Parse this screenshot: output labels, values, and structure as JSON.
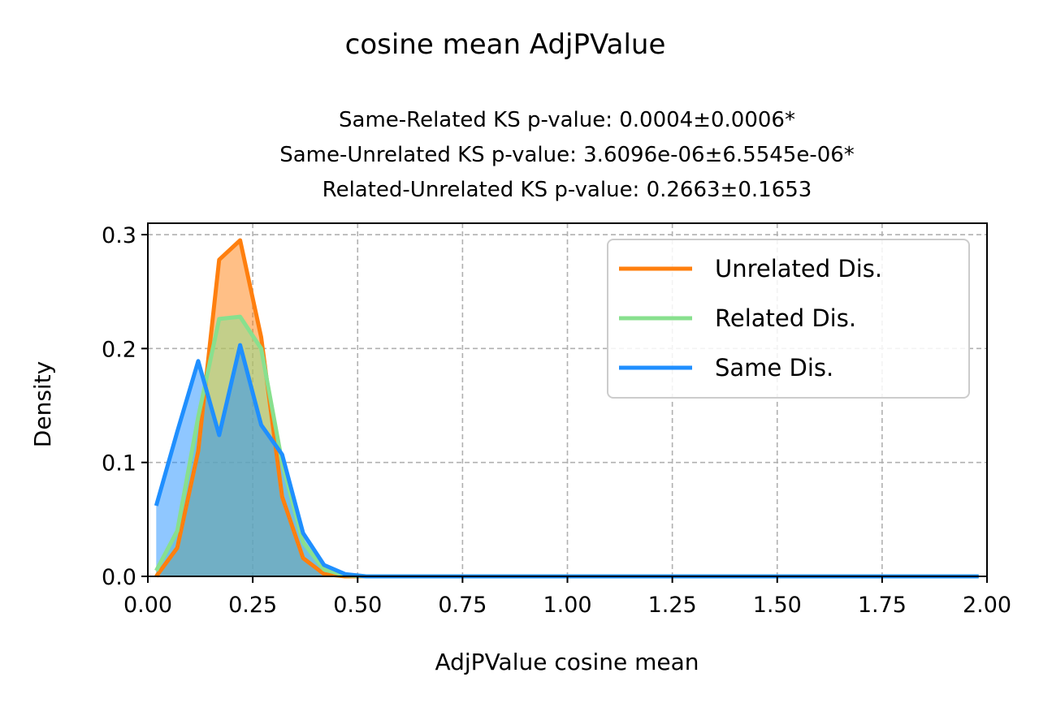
{
  "chart_data": {
    "type": "area",
    "title": "cosine mean AdjPValue",
    "subtitle": [
      "Same-Related KS p-value: 0.0004±0.0006*",
      "Same-Unrelated KS p-value: 3.6096e-06±6.5545e-06*",
      "Related-Unrelated KS p-value: 0.2663±0.1653"
    ],
    "xlabel": "AdjPValue cosine mean",
    "ylabel": "Density",
    "xlim": [
      0,
      2
    ],
    "ylim": [
      0,
      0.31
    ],
    "xticks": [
      "0.00",
      "0.25",
      "0.50",
      "0.75",
      "1.00",
      "1.25",
      "1.50",
      "1.75",
      "2.00"
    ],
    "yticks": [
      "0.0",
      "0.1",
      "0.2",
      "0.3"
    ],
    "grid": true,
    "legend_position": "top-right",
    "series": [
      {
        "name": "Unrelated Dis.",
        "color": "#ff7f0e",
        "x": [
          0.02,
          0.07,
          0.12,
          0.17,
          0.22,
          0.27,
          0.32,
          0.37,
          0.42,
          0.47,
          0.52,
          0.57,
          1.0,
          1.5,
          1.98
        ],
        "y": [
          0.0,
          0.025,
          0.11,
          0.278,
          0.295,
          0.21,
          0.07,
          0.016,
          0.002,
          0.0,
          0.0,
          0.0,
          0.0,
          0.0,
          0.0
        ]
      },
      {
        "name": "Related Dis.",
        "color": "#88e08e",
        "x": [
          0.02,
          0.07,
          0.12,
          0.17,
          0.22,
          0.27,
          0.32,
          0.37,
          0.42,
          0.47,
          0.52,
          0.57,
          1.0,
          1.5,
          1.98
        ],
        "y": [
          0.005,
          0.04,
          0.14,
          0.226,
          0.228,
          0.2,
          0.1,
          0.03,
          0.006,
          0.001,
          0.0,
          0.0,
          0.0,
          0.0,
          0.0
        ]
      },
      {
        "name": "Same Dis.",
        "color": "#1f8fff",
        "x": [
          0.02,
          0.07,
          0.12,
          0.17,
          0.22,
          0.27,
          0.32,
          0.37,
          0.42,
          0.47,
          0.52,
          0.57,
          1.0,
          1.5,
          1.98
        ],
        "y": [
          0.062,
          0.127,
          0.189,
          0.124,
          0.203,
          0.133,
          0.107,
          0.038,
          0.01,
          0.002,
          0.0,
          0.0,
          0.0,
          0.0,
          0.0
        ]
      }
    ]
  }
}
